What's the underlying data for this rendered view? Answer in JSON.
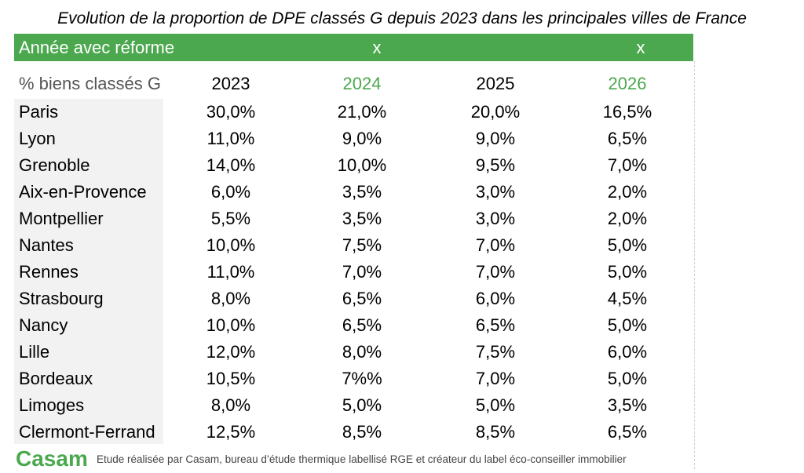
{
  "title": "Evolution de la proportion de DPE classés G depuis 2023 dans les principales villes de France",
  "reform_row": {
    "label": "Année avec réforme",
    "marks": [
      "",
      "x",
      "",
      "x"
    ]
  },
  "chart_data": {
    "type": "table",
    "title": "Evolution de la proportion de DPE classés G depuis 2023 dans les principales villes de France",
    "row_header": "% biens classés G",
    "columns": [
      "2023",
      "2024",
      "2025",
      "2026"
    ],
    "highlighted_columns": [
      "2024",
      "2026"
    ],
    "rows": [
      {
        "city": "Paris",
        "values": [
          "30,0%",
          "21,0%",
          "20,0%",
          "16,5%"
        ]
      },
      {
        "city": "Lyon",
        "values": [
          "11,0%",
          "9,0%",
          "9,0%",
          "6,5%"
        ]
      },
      {
        "city": "Grenoble",
        "values": [
          "14,0%",
          "10,0%",
          "9,5%",
          "7,0%"
        ]
      },
      {
        "city": "Aix-en-Provence",
        "values": [
          "6,0%",
          "3,5%",
          "3,0%",
          "2,0%"
        ]
      },
      {
        "city": "Montpellier",
        "values": [
          "5,5%",
          "3,5%",
          "3,0%",
          "2,0%"
        ]
      },
      {
        "city": "Nantes",
        "values": [
          "10,0%",
          "7,5%",
          "7,0%",
          "5,0%"
        ]
      },
      {
        "city": "Rennes",
        "values": [
          "11,0%",
          "7,0%",
          "7,0%",
          "5,0%"
        ]
      },
      {
        "city": "Strasbourg",
        "values": [
          "8,0%",
          "6,5%",
          "6,0%",
          "4,5%"
        ]
      },
      {
        "city": "Nancy",
        "values": [
          "10,0%",
          "6,5%",
          "6,5%",
          "5,0%"
        ]
      },
      {
        "city": "Lille",
        "values": [
          "12,0%",
          "8,0%",
          "7,5%",
          "6,0%"
        ]
      },
      {
        "city": "Bordeaux",
        "values": [
          "10,5%",
          "7%%",
          "7,0%",
          "5,0%"
        ]
      },
      {
        "city": "Limoges",
        "values": [
          "8,0%",
          "5,0%",
          "5,0%",
          "3,5%"
        ]
      },
      {
        "city": "Clermont-Ferrand",
        "values": [
          "12,5%",
          "8,5%",
          "8,5%",
          "6,5%"
        ]
      }
    ]
  },
  "footer": {
    "brand": "Casam",
    "note": "Etude réalisée par Casam, bureau d’étude thermique labellisé RGE et créateur du label éco-conseiller immobilier"
  },
  "colors": {
    "accent": "#4ca84e",
    "city_bg": "#f2f2f2"
  }
}
